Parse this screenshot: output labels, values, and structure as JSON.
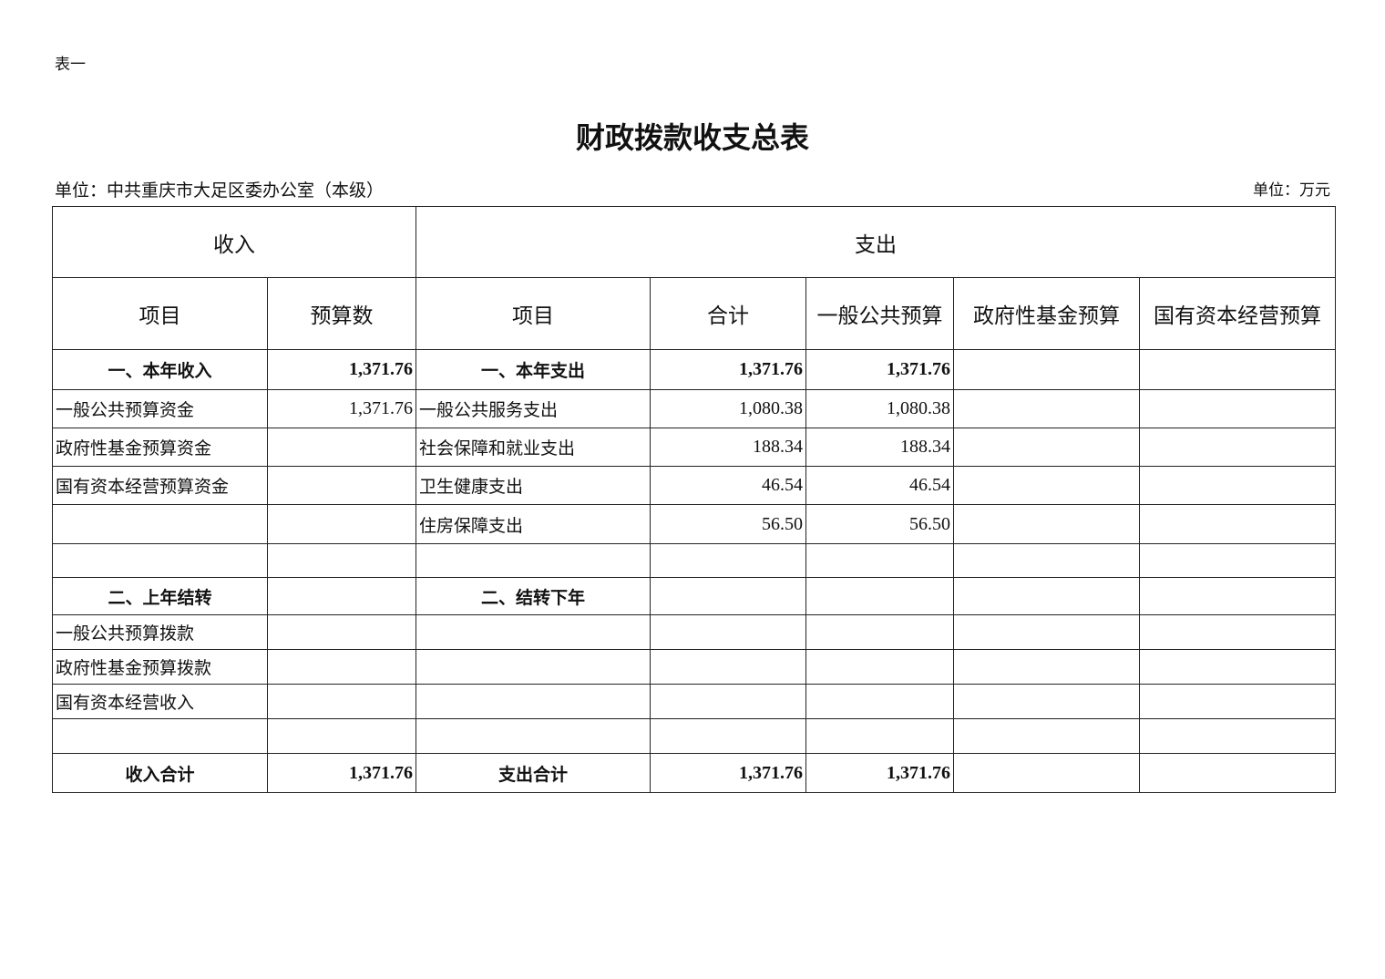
{
  "doc": {
    "tag": "表一",
    "title": "财政拨款收支总表",
    "unit_left": "单位：中共重庆市大足区委办公室（本级）",
    "unit_right": "单位：万元"
  },
  "header": {
    "income": "收入",
    "expense": "支出",
    "cols": [
      "项目",
      "预算数",
      "项目",
      "合计",
      "一般公共预算",
      "政府性基金预算",
      "国有资本经营预算"
    ]
  },
  "rows": [
    {
      "cells": [
        "一、本年收入",
        "1,371.76",
        "一、本年支出",
        "1,371.76",
        "1,371.76",
        "",
        ""
      ],
      "bold": true
    },
    {
      "cells": [
        "一般公共预算资金",
        "1,371.76",
        "一般公共服务支出",
        "1,080.38",
        "1,080.38",
        "",
        ""
      ]
    },
    {
      "cells": [
        "政府性基金预算资金",
        "",
        "社会保障和就业支出",
        "188.34",
        "188.34",
        "",
        ""
      ]
    },
    {
      "cells": [
        "国有资本经营预算资金",
        "",
        "卫生健康支出",
        "46.54",
        "46.54",
        "",
        ""
      ]
    },
    {
      "cells": [
        "",
        "",
        "住房保障支出",
        "56.50",
        "56.50",
        "",
        ""
      ]
    },
    {
      "cells": [
        "",
        "",
        "",
        "",
        "",
        "",
        ""
      ]
    },
    {
      "cells": [
        "二、上年结转",
        "",
        "二、结转下年",
        "",
        "",
        "",
        ""
      ],
      "bold": true
    },
    {
      "cells": [
        "一般公共预算拨款",
        "",
        "",
        "",
        "",
        "",
        ""
      ]
    },
    {
      "cells": [
        "政府性基金预算拨款",
        "",
        "",
        "",
        "",
        "",
        ""
      ]
    },
    {
      "cells": [
        "国有资本经营收入",
        "",
        "",
        "",
        "",
        "",
        ""
      ]
    },
    {
      "cells": [
        "",
        "",
        "",
        "",
        "",
        "",
        ""
      ]
    },
    {
      "cells": [
        "收入合计",
        "1,371.76",
        "支出合计",
        "1,371.76",
        "1,371.76",
        "",
        ""
      ],
      "bold": true
    }
  ]
}
